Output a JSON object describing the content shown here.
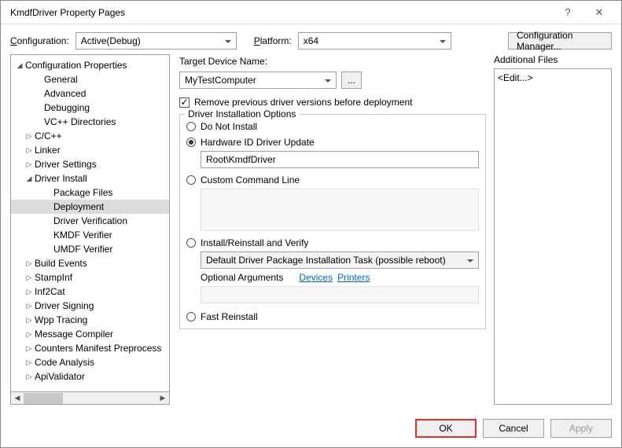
{
  "window": {
    "title": "KmdfDriver Property Pages"
  },
  "top": {
    "configuration_label": "Configuration:",
    "configuration_value": "Active(Debug)",
    "platform_label": "Platform:",
    "platform_value": "x64",
    "config_manager": "Configuration Manager..."
  },
  "tree": [
    {
      "indent": 0,
      "tw": "◢",
      "label": "Configuration Properties",
      "sel": false
    },
    {
      "indent": 2,
      "tw": "",
      "label": "General"
    },
    {
      "indent": 2,
      "tw": "",
      "label": "Advanced"
    },
    {
      "indent": 2,
      "tw": "",
      "label": "Debugging"
    },
    {
      "indent": 2,
      "tw": "",
      "label": "VC++ Directories"
    },
    {
      "indent": 1,
      "tw": "▷",
      "label": "C/C++"
    },
    {
      "indent": 1,
      "tw": "▷",
      "label": "Linker"
    },
    {
      "indent": 1,
      "tw": "▷",
      "label": "Driver Settings"
    },
    {
      "indent": 1,
      "tw": "◢",
      "label": "Driver Install"
    },
    {
      "indent": 3,
      "tw": "",
      "label": "Package Files"
    },
    {
      "indent": 3,
      "tw": "",
      "label": "Deployment",
      "sel": true
    },
    {
      "indent": 3,
      "tw": "",
      "label": "Driver Verification"
    },
    {
      "indent": 3,
      "tw": "",
      "label": "KMDF Verifier"
    },
    {
      "indent": 3,
      "tw": "",
      "label": "UMDF Verifier"
    },
    {
      "indent": 1,
      "tw": "▷",
      "label": "Build Events"
    },
    {
      "indent": 1,
      "tw": "▷",
      "label": "StampInf"
    },
    {
      "indent": 1,
      "tw": "▷",
      "label": "Inf2Cat"
    },
    {
      "indent": 1,
      "tw": "▷",
      "label": "Driver Signing"
    },
    {
      "indent": 1,
      "tw": "▷",
      "label": "Wpp Tracing"
    },
    {
      "indent": 1,
      "tw": "▷",
      "label": "Message Compiler"
    },
    {
      "indent": 1,
      "tw": "▷",
      "label": "Counters Manifest Preprocess"
    },
    {
      "indent": 1,
      "tw": "▷",
      "label": "Code Analysis"
    },
    {
      "indent": 1,
      "tw": "▷",
      "label": "ApiValidator"
    }
  ],
  "deploy": {
    "target_device_label": "Target Device Name:",
    "target_device_value": "MyTestComputer",
    "browse": "...",
    "remove_checkbox_checked": "✓",
    "remove_label": "Remove previous driver versions before deployment",
    "group_title": "Driver Installation Options",
    "opt_do_not_install": "Do Not Install",
    "opt_hwid": "Hardware ID Driver Update",
    "hwid_value": "Root\\KmdfDriver",
    "opt_custom": "Custom Command Line",
    "opt_install_verify": "Install/Reinstall and Verify",
    "install_task_value": "Default Driver Package Installation Task (possible reboot)",
    "optional_args_label": "Optional Arguments",
    "link_devices": "Devices",
    "link_printers": "Printers",
    "opt_fast": "Fast Reinstall"
  },
  "additional": {
    "title": "Additional Files",
    "item": "<Edit...>"
  },
  "buttons": {
    "ok": "OK",
    "cancel": "Cancel",
    "apply": "Apply"
  },
  "colors": {
    "highlight_border": "#e03030",
    "selection_bg": "#dcdcdc"
  }
}
